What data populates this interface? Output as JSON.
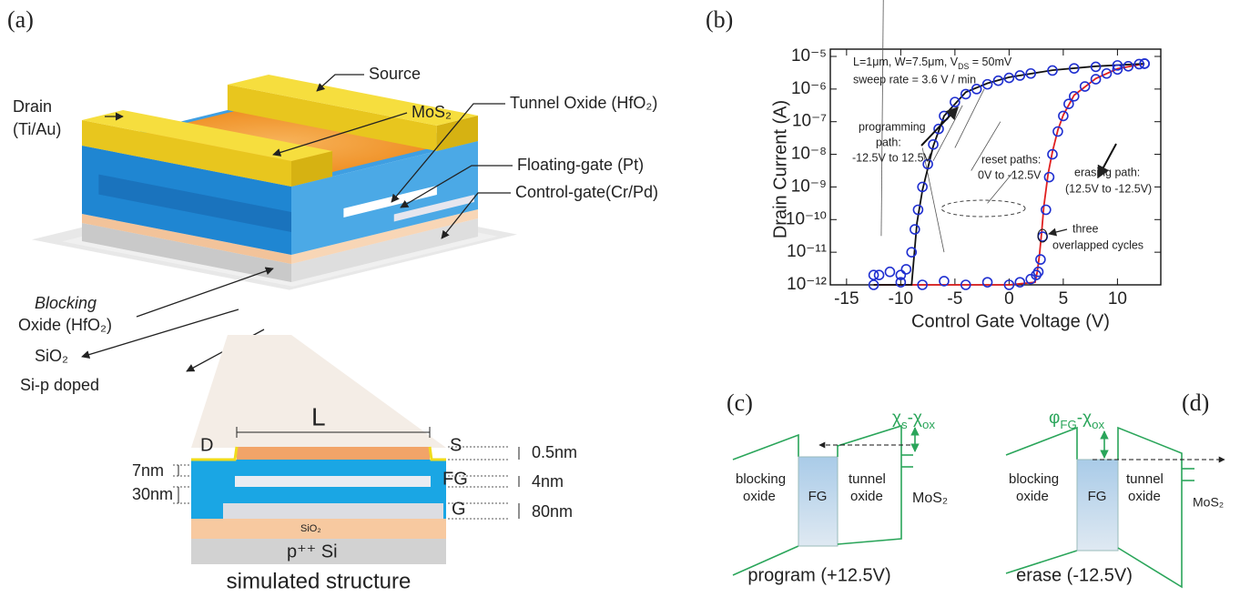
{
  "panels": {
    "a": {
      "label": "(a)",
      "source": "Source",
      "drain": [
        "Drain",
        "(Ti/Au)"
      ],
      "mos2": "MoS₂",
      "tunnel_oxide": "Tunnel Oxide (HfO₂)",
      "floating_gate": "Floating-gate (Pt)",
      "control_gate": "Control-gate(Cr/Pd)",
      "blocking_oxide": [
        "Blocking",
        "Oxide (HfO₂)"
      ],
      "sio2": "SiO₂",
      "si": "Si-p doped"
    },
    "cross_section": {
      "L": "L",
      "D": "D",
      "S": "S",
      "FG": "FG",
      "G": "G",
      "sio2": "SiO₂",
      "si": "p⁺⁺ Si",
      "dims": [
        "0.5nm",
        "4nm",
        "80nm",
        "7nm",
        "30nm"
      ],
      "caption": "simulated structure"
    },
    "c": {
      "label": "(c)",
      "blocking": [
        "blocking",
        "oxide"
      ],
      "fg": "FG",
      "tunnel": [
        "tunnel",
        "oxide"
      ],
      "mos2": "MoS₂",
      "barrier": [
        "χ",
        "s",
        "-χ",
        "ox"
      ],
      "caption": "program (+12.5V)"
    },
    "d": {
      "label": "(d)",
      "blocking": [
        "blocking",
        "oxide"
      ],
      "fg": "FG",
      "tunnel": [
        "tunnel",
        "oxide"
      ],
      "mos2": "MoS₂",
      "barrier": [
        "φ",
        "FG",
        "-χ",
        "ox"
      ],
      "caption": "erase (-12.5V)"
    }
  },
  "chart_data": {
    "type": "scatter",
    "label": "(b)",
    "xlabel": "Control Gate Voltage (V)",
    "ylabel": "Drain Current (A)",
    "log_y": true,
    "xlim": [
      -16.5,
      14
    ],
    "xticks": [
      -15,
      -10,
      -5,
      0,
      5,
      10
    ],
    "ylim": [
      1e-12,
      1e-05
    ],
    "yticks": [
      {
        "value": 1e-05,
        "label": "10⁻⁵"
      },
      {
        "value": 1e-06,
        "label": "10⁻⁶"
      },
      {
        "value": 1e-07,
        "label": "10⁻⁷"
      },
      {
        "value": 1e-08,
        "label": "10⁻⁸"
      },
      {
        "value": 1e-09,
        "label": "10⁻⁹"
      },
      {
        "value": 1e-10,
        "label": "10⁻¹⁰"
      },
      {
        "value": 1e-11,
        "label": "10⁻¹¹"
      },
      {
        "value": 1e-12,
        "label": "10⁻¹²"
      }
    ],
    "series": [
      {
        "color": "#1f2fd0",
        "marker": "circle",
        "x": [
          -12.5,
          -12,
          -11,
          -10,
          -9.5,
          -9,
          -8.7,
          -8.4,
          -8,
          -7.5,
          -7,
          -6.5,
          -6,
          -5,
          -4,
          -3,
          -2,
          -1,
          0,
          1,
          2,
          4,
          6,
          8,
          10,
          12,
          12.5
        ],
        "values": [
          2e-12,
          2e-12,
          2.5e-12,
          2e-12,
          3e-12,
          1e-11,
          5e-11,
          2e-10,
          1e-09,
          5e-09,
          2e-08,
          6e-08,
          1.5e-07,
          4e-07,
          7e-07,
          1e-06,
          1.4e-06,
          1.8e-06,
          2.2e-06,
          2.6e-06,
          3e-06,
          3.7e-06,
          4.3e-06,
          4.8e-06,
          5.3e-06,
          5.8e-06,
          6e-06
        ]
      },
      {
        "color": "#1f2fd0",
        "marker": "circle",
        "x": [
          12.5,
          11,
          10,
          9,
          8,
          7,
          6,
          5.5,
          5,
          4.5,
          4,
          3.7,
          3.4,
          3.1,
          2.9,
          2.7,
          2.5,
          2,
          1,
          0,
          -2,
          -4,
          -6,
          -8,
          -10,
          -12.5
        ],
        "values": [
          6e-06,
          5e-06,
          4e-06,
          3e-06,
          2e-06,
          1.2e-06,
          6e-07,
          3.5e-07,
          1.5e-07,
          5e-08,
          1e-08,
          2e-09,
          2e-10,
          3e-11,
          6e-12,
          2.5e-12,
          2e-12,
          1.5e-12,
          1.2e-12,
          1e-12,
          1.2e-12,
          1e-12,
          1.3e-12,
          1e-12,
          1.2e-12,
          1e-12
        ]
      },
      {
        "color": "#e02020",
        "marker": "line",
        "x": [
          12.5,
          10,
          8,
          6,
          5,
          4.5,
          4,
          3.6,
          3.2,
          3,
          2.8,
          2.6,
          2.4,
          0,
          -5,
          -12.5
        ],
        "values": [
          6e-06,
          4.2e-06,
          2.1e-06,
          6.5e-07,
          1.6e-07,
          5.5e-08,
          1.2e-08,
          2.5e-09,
          2.5e-10,
          4e-11,
          8e-12,
          2.5e-12,
          1.2e-12,
          1e-12,
          1e-12,
          1e-12
        ]
      },
      {
        "color": "#111111",
        "marker": "line",
        "x": [
          -12.5,
          -9,
          -8.5,
          -8,
          -7,
          -6,
          -4,
          -2,
          0,
          4,
          8,
          12.5
        ],
        "values": [
          1e-12,
          1e-12,
          8e-11,
          8e-10,
          1.8e-08,
          1.5e-07,
          8e-07,
          1.5e-06,
          2.3e-06,
          3.8e-06,
          5e-06,
          6e-06
        ]
      }
    ],
    "annotations": {
      "conditions": [
        "L=1μm, W=7.5μm, V",
        "DS",
        " = 50mV"
      ],
      "sweep": "sweep rate = 3.6 V / min",
      "programming": [
        "programming",
        "path:",
        "-12.5V to 12.5V"
      ],
      "reset": [
        "reset paths:",
        "0V to -12.5V"
      ],
      "erasing": [
        "erasing path:",
        "(12.5V to -12.5V)"
      ],
      "cycles": [
        "three",
        "overlapped cycles"
      ]
    }
  }
}
